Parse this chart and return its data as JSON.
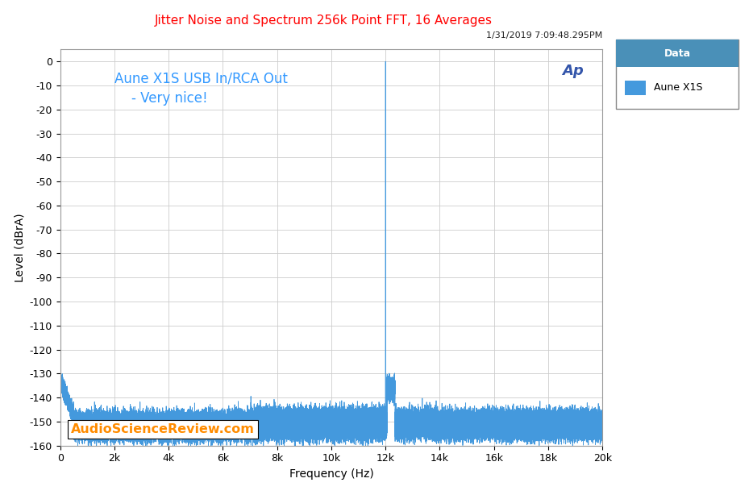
{
  "title": "Jitter Noise and Spectrum 256k Point FFT, 16 Averages",
  "title_color": "#FF0000",
  "datetime_text": "1/31/2019 7:09:48.295PM",
  "annotation_line1": "Aune X1S USB In/RCA Out",
  "annotation_line2": "    - Very nice!",
  "annotation_color": "#3399FF",
  "watermark_text": "AudioScienceReview.com",
  "watermark_color": "#FF8C00",
  "xlabel": "Frequency (Hz)",
  "ylabel": "Level (dBrA)",
  "xlim": [
    0,
    20000
  ],
  "ylim": [
    -160,
    5
  ],
  "yticks": [
    0,
    -10,
    -20,
    -30,
    -40,
    -50,
    -60,
    -70,
    -80,
    -90,
    -100,
    -110,
    -120,
    -130,
    -140,
    -150,
    -160
  ],
  "xticks": [
    0,
    2000,
    4000,
    6000,
    8000,
    10000,
    12000,
    14000,
    16000,
    18000,
    20000
  ],
  "xtick_labels": [
    "0",
    "2k",
    "4k",
    "6k",
    "8k",
    "10k",
    "12k",
    "14k",
    "16k",
    "18k",
    "20k"
  ],
  "signal_freq": 12000,
  "noise_floor": -152,
  "line_color": "#4499DD",
  "bg_color": "#FFFFFF",
  "plot_bg_color": "#FFFFFF",
  "grid_color": "#CCCCCC",
  "legend_title": "Data",
  "legend_label": "Aune X1S",
  "legend_title_bg": "#4A90B8",
  "legend_title_color": "#FFFFFF",
  "legend_item_color": "#4499DD",
  "ap_logo_color": "#3355AA",
  "fig_width": 9.34,
  "fig_height": 6.14
}
